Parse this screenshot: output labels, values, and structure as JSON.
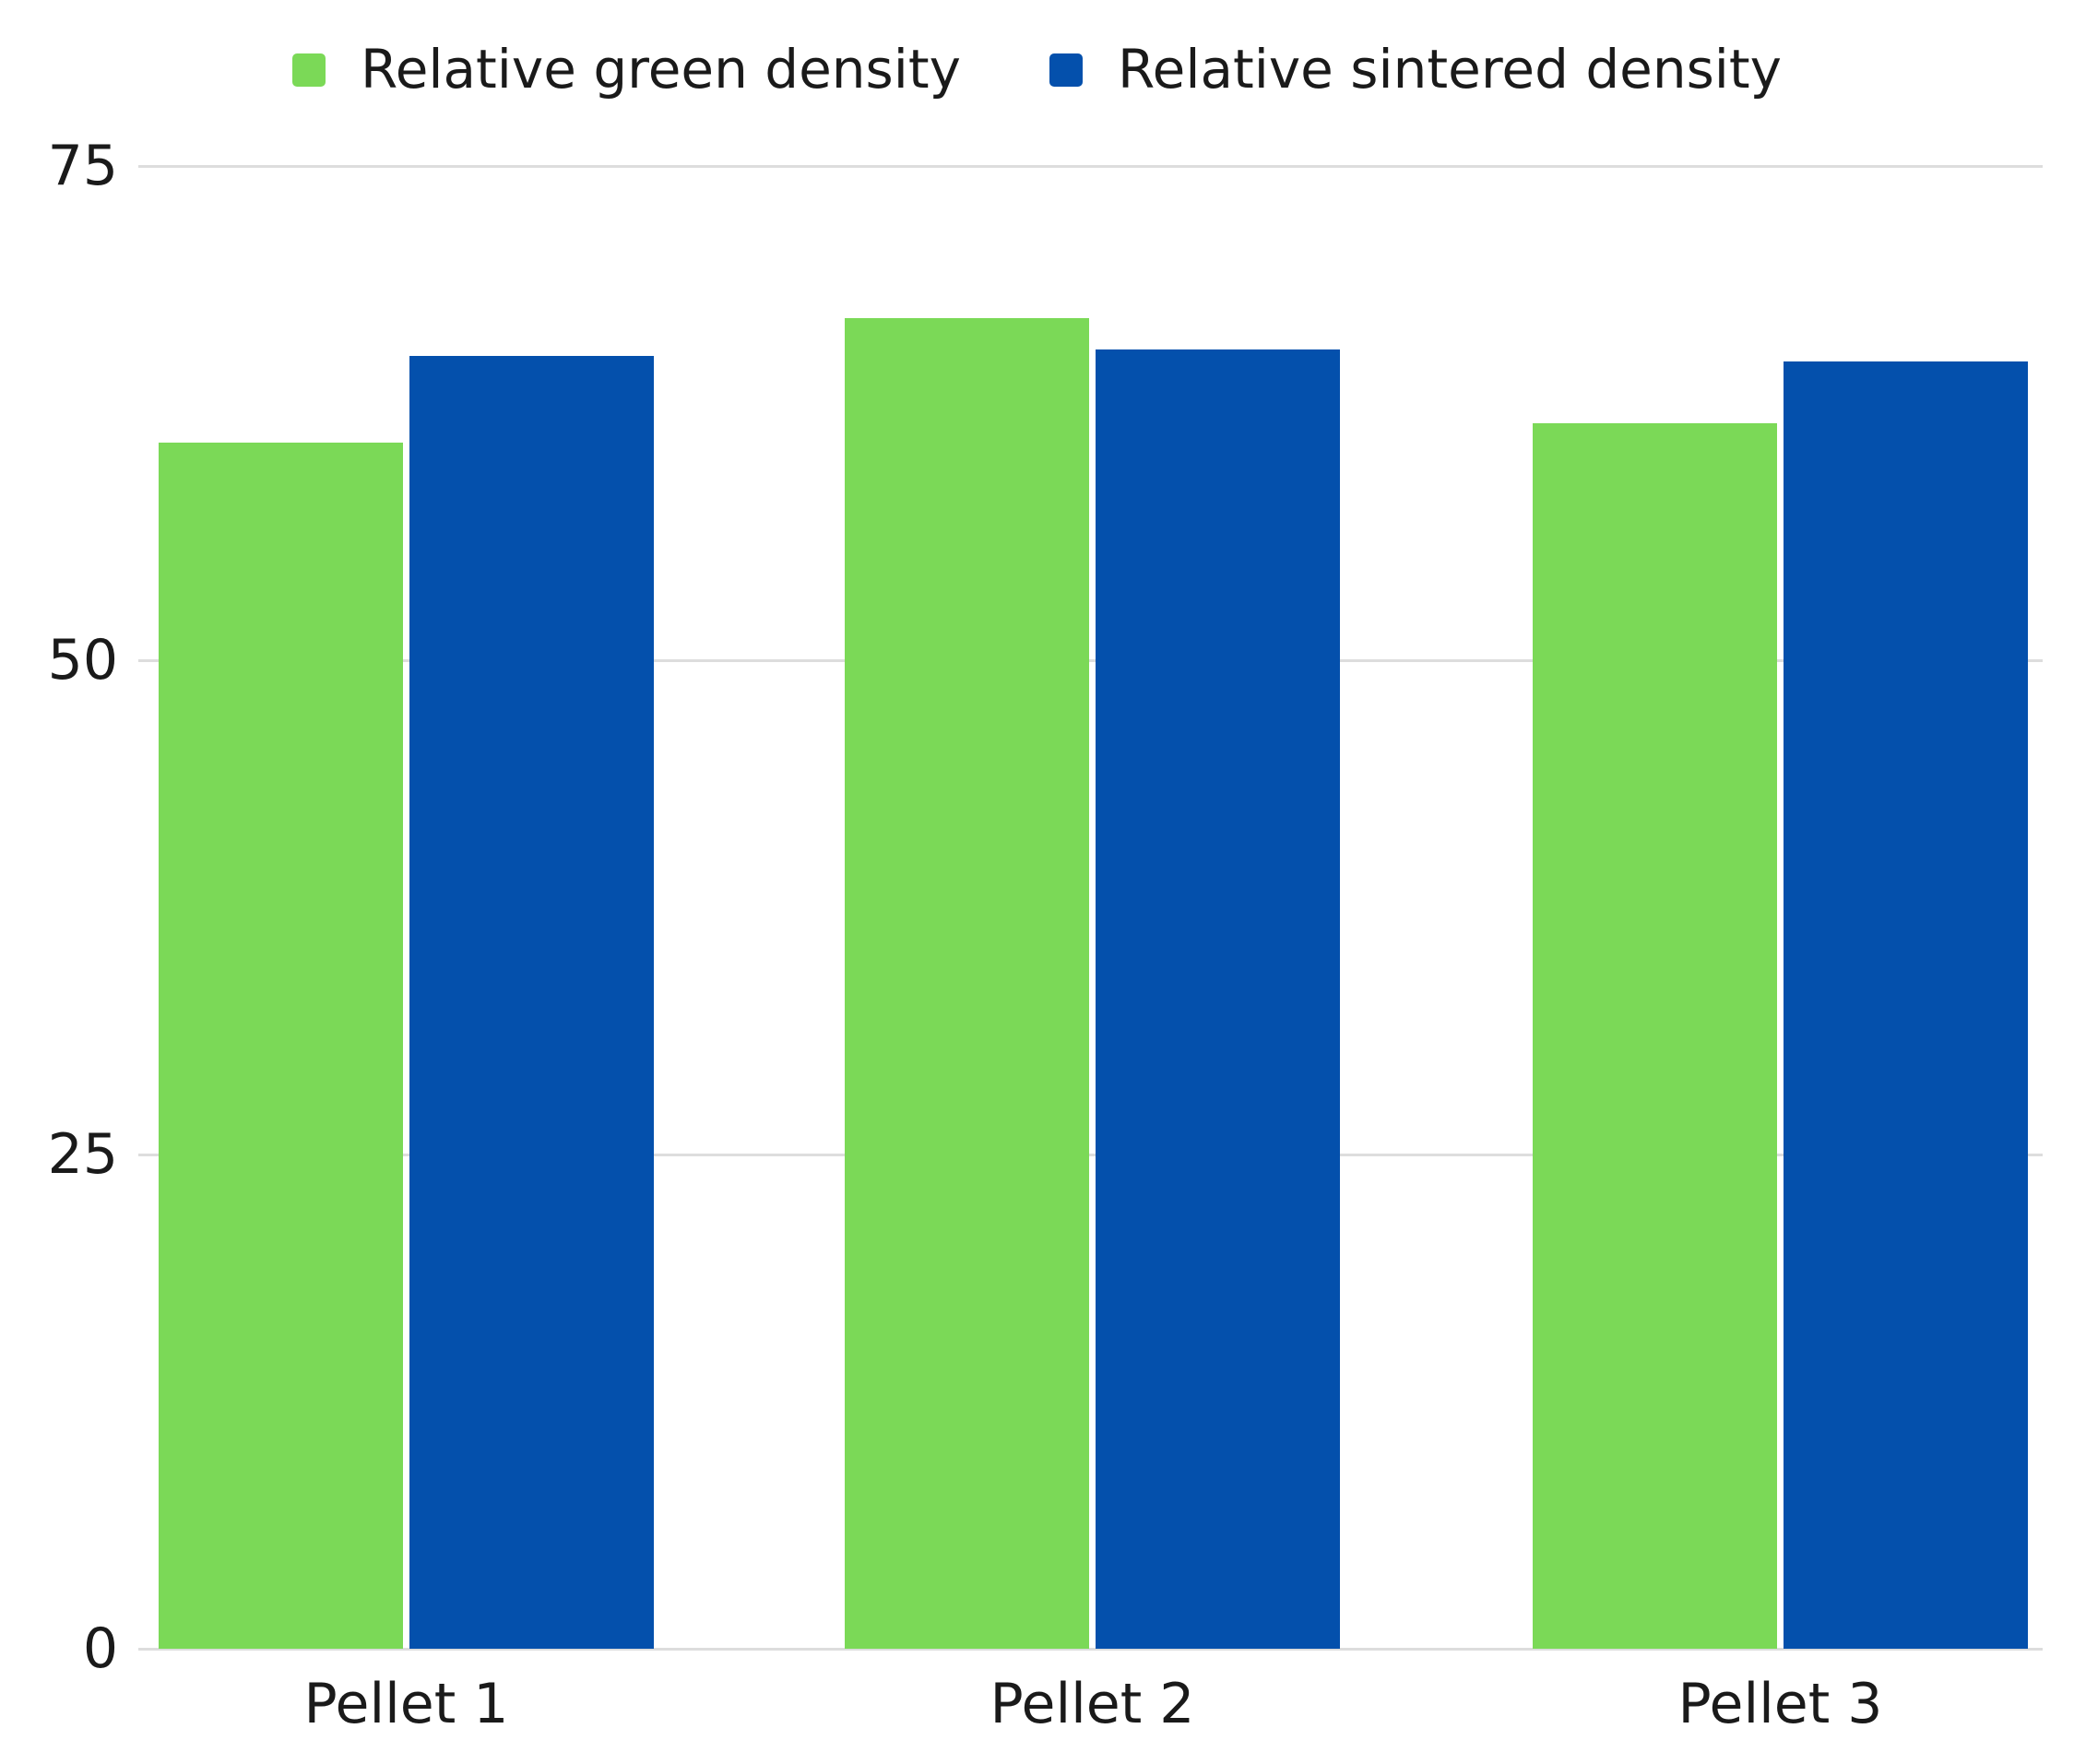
{
  "chart_data": {
    "type": "bar",
    "title": "",
    "xlabel": "",
    "ylabel": "",
    "categories": [
      "Pellet 1",
      "Pellet 2",
      "Pellet 3"
    ],
    "series": [
      {
        "name": "Relative green density",
        "color": "#7BD957",
        "values": [
          61.0,
          67.3,
          62.0
        ]
      },
      {
        "name": "Relative sintered density",
        "color": "#0450AC",
        "values": [
          65.4,
          65.7,
          65.1
        ]
      }
    ],
    "yticks": [
      0,
      25,
      50,
      75
    ],
    "ylim": [
      0,
      75
    ],
    "grid": true,
    "legend_position": "top"
  },
  "colors": {
    "background": "#ffffff",
    "text": "#1a1a1a",
    "gridline": "#dddddd"
  }
}
